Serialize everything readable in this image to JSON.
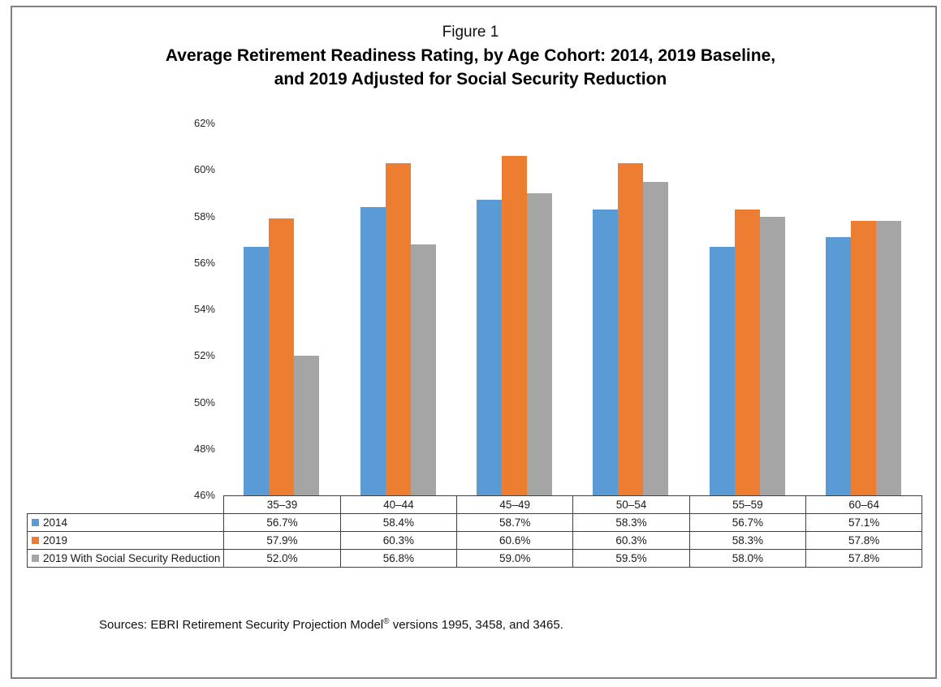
{
  "figure": {
    "label": "Figure 1",
    "title_line1": "Average Retirement Readiness Rating, by Age Cohort: 2014, 2019 Baseline,",
    "title_line2": "and 2019 Adjusted for Social Security Reduction",
    "source_prefix": "Sources: EBRI Retirement Security Projection Model",
    "source_reg": "®",
    "source_suffix": " versions 1995, 3458, and 3465."
  },
  "chart_data": {
    "type": "bar",
    "title": "Average Retirement Readiness Rating, by Age Cohort: 2014, 2019 Baseline, and 2019 Adjusted for Social Security Reduction",
    "categories": [
      "35–39",
      "40–44",
      "45–49",
      "50–54",
      "55–59",
      "60–64"
    ],
    "series": [
      {
        "name": "2014",
        "color": "#5B9BD5",
        "values": [
          56.7,
          58.4,
          58.7,
          58.3,
          56.7,
          57.1
        ]
      },
      {
        "name": "2019",
        "color": "#ED7D31",
        "values": [
          57.9,
          60.3,
          60.6,
          60.3,
          58.3,
          57.8
        ]
      },
      {
        "name": "2019 With Social Security Reduction",
        "color": "#A5A5A5",
        "values": [
          52.0,
          56.8,
          59.0,
          59.5,
          58.0,
          57.8
        ]
      }
    ],
    "ylim": [
      46,
      62
    ],
    "ytick_step": 2,
    "ytick_suffix": "%",
    "value_suffix": "%",
    "grid": false,
    "legend_position": "data-table-left"
  }
}
